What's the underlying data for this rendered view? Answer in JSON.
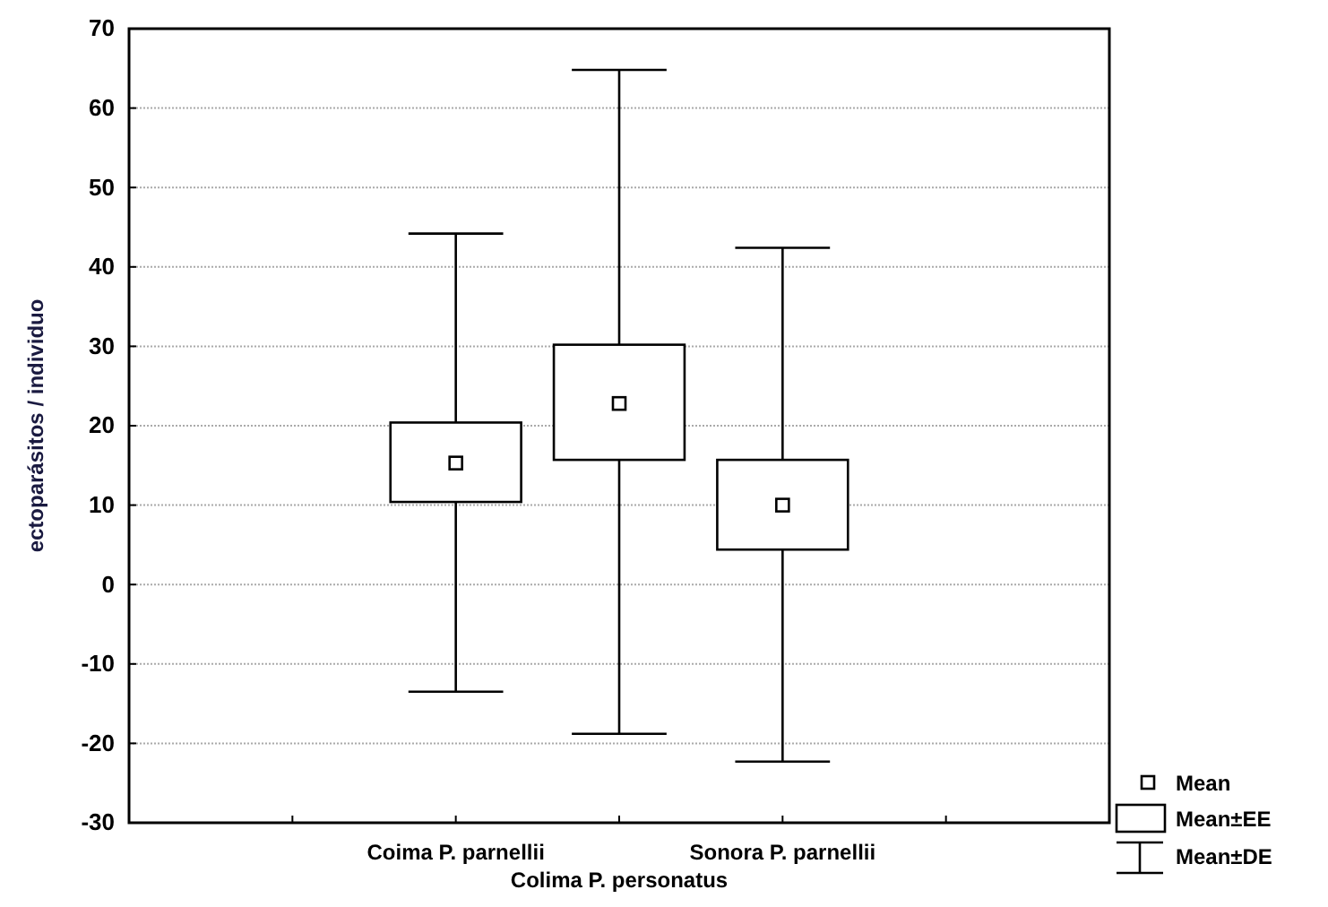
{
  "chart_data": {
    "type": "box",
    "ylabel": "ectoparásitos / individuo",
    "categories": [
      null,
      "Coima P. parnellii",
      "Colima P. personatus",
      "Sonora P. parnellii",
      null
    ],
    "boxes": [
      null,
      {
        "low": -13.5,
        "q1": 10.4,
        "median": 15.3,
        "q3": 20.4,
        "high": 44.2
      },
      {
        "low": -18.8,
        "q1": 15.7,
        "median": 22.8,
        "q3": 30.2,
        "high": 64.8
      },
      {
        "low": -22.3,
        "q1": 4.4,
        "median": 10,
        "q3": 15.7,
        "high": 42.4
      },
      null
    ],
    "ylim": [
      -30,
      70
    ],
    "yticks": [
      -30,
      -20,
      -10,
      0,
      10,
      20,
      30,
      40,
      50,
      60,
      70
    ],
    "grid": "y",
    "annotations": [
      "Mean",
      "Mean±EE",
      "Mean±DE"
    ]
  }
}
